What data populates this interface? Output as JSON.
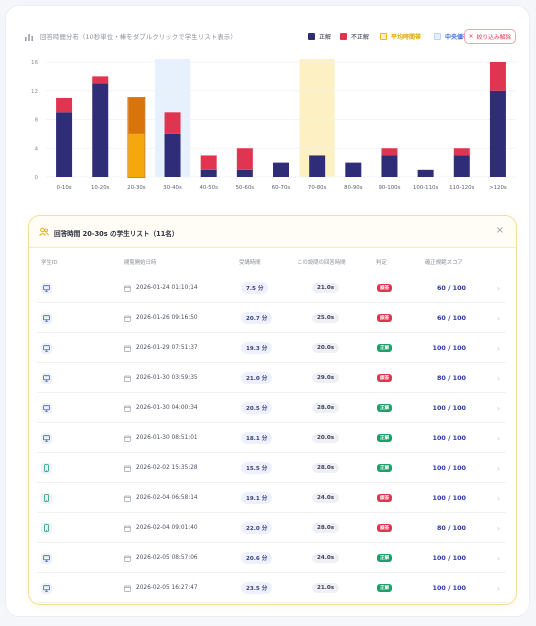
{
  "chart_header": {
    "title": "回答時間分布（10秒単位・棒をダブルクリックで学生リスト表示）",
    "legend": [
      {
        "label": "正解",
        "color": "#2f2d77"
      },
      {
        "label": "不正解",
        "color": "#e03550"
      },
      {
        "label": "平均時間帯",
        "color": "#f5b800"
      },
      {
        "label": "中央値帯",
        "color": "#bcd4f7"
      }
    ],
    "reset_label": "絞り込み解除"
  },
  "chart_data": {
    "type": "bar",
    "stacked": true,
    "categories": [
      "0-10s",
      "10-20s",
      "20-30s",
      "30-40s",
      "40-50s",
      "50-60s",
      "60-70s",
      "70-80s",
      "80-90s",
      "90-100s",
      "100-110s",
      "110-120s",
      ">120s"
    ],
    "series": [
      {
        "name": "正解",
        "values": [
          9,
          13,
          6,
          6,
          1,
          1,
          2,
          3,
          2,
          3,
          1,
          3,
          12
        ],
        "color": "#2f2d77"
      },
      {
        "name": "不正解",
        "values": [
          2,
          1,
          5,
          3,
          2,
          3,
          0,
          0,
          0,
          1,
          0,
          1,
          4
        ],
        "color": "#e03550"
      }
    ],
    "selected_category": "20-30s",
    "selected_colors": {
      "correct": "#f5a70e",
      "incorrect": "#d9740a"
    },
    "average_band": "70-80s",
    "median_band": "30-40s",
    "band_colors": {
      "average": "#fdf1c4",
      "median": "#e7f0fd"
    },
    "yticks": [
      0,
      4,
      8,
      12,
      16
    ],
    "ylim": [
      0,
      16
    ]
  },
  "panel": {
    "title": "回答時間 20-30s の学生リスト（11名）",
    "close_label": "×",
    "columns": [
      "学生ID",
      "閲覧開始日時",
      "受講時間",
      "この設問の回答時間",
      "判定",
      "確正規範スコア"
    ],
    "rows": [
      {
        "device": "desktop",
        "datetime": "2026-01-24 01:10:14",
        "duration": "7.5 分",
        "answer": "21.0s",
        "judge": "誤答",
        "judge_type": "wrong",
        "score": "60 / 100"
      },
      {
        "device": "desktop",
        "datetime": "2026-01-26 09:16:50",
        "duration": "20.7 分",
        "answer": "25.0s",
        "judge": "誤答",
        "judge_type": "wrong",
        "score": "60 / 100"
      },
      {
        "device": "desktop",
        "datetime": "2026-01-29 07:51:37",
        "duration": "19.3 分",
        "answer": "20.0s",
        "judge": "正解",
        "judge_type": "right",
        "score": "100 / 100"
      },
      {
        "device": "desktop",
        "datetime": "2026-01-30 03:59:35",
        "duration": "21.0 分",
        "answer": "29.0s",
        "judge": "誤答",
        "judge_type": "wrong",
        "score": "80 / 100"
      },
      {
        "device": "desktop",
        "datetime": "2026-01-30 04:00:34",
        "duration": "20.5 分",
        "answer": "28.0s",
        "judge": "正解",
        "judge_type": "right",
        "score": "100 / 100"
      },
      {
        "device": "desktop",
        "datetime": "2026-01-30 08:51:01",
        "duration": "18.1 分",
        "answer": "20.0s",
        "judge": "正解",
        "judge_type": "right",
        "score": "100 / 100"
      },
      {
        "device": "mobile",
        "datetime": "2026-02-02 15:35:28",
        "duration": "15.5 分",
        "answer": "28.0s",
        "judge": "正解",
        "judge_type": "right",
        "score": "100 / 100"
      },
      {
        "device": "mobile",
        "datetime": "2026-02-04 06:58:14",
        "duration": "19.1 分",
        "answer": "24.0s",
        "judge": "誤答",
        "judge_type": "wrong",
        "score": "100 / 100"
      },
      {
        "device": "mobile",
        "datetime": "2026-02-04 09:01:40",
        "duration": "22.0 分",
        "answer": "28.0s",
        "judge": "誤答",
        "judge_type": "wrong",
        "score": "80 / 100"
      },
      {
        "device": "desktop",
        "datetime": "2026-02-05 08:57:06",
        "duration": "20.6 分",
        "answer": "24.0s",
        "judge": "正解",
        "judge_type": "right",
        "score": "100 / 100"
      },
      {
        "device": "desktop",
        "datetime": "2026-02-05 16:27:47",
        "duration": "23.5 分",
        "answer": "21.0s",
        "judge": "正解",
        "judge_type": "right",
        "score": "100 / 100"
      }
    ],
    "judge_colors": {
      "wrong": "#e03550",
      "right": "#1f9d6b"
    }
  }
}
